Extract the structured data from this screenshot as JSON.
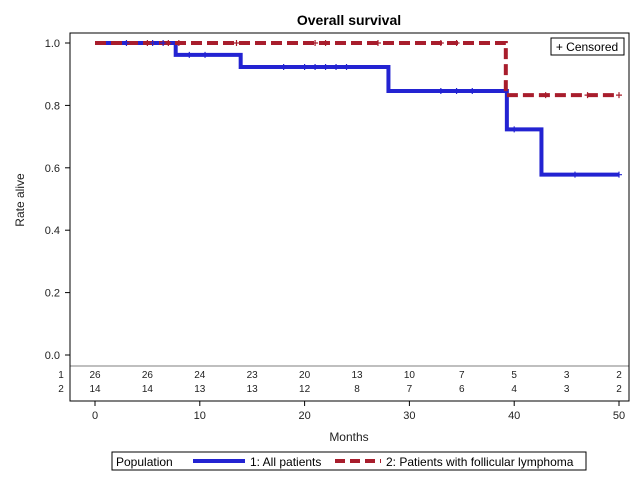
{
  "chart_data": {
    "type": "line",
    "step": true,
    "title": "Overall survival",
    "xlabel": "Months",
    "ylabel": "Rate alive",
    "xlim": [
      0,
      50
    ],
    "ylim": [
      0,
      1.0
    ],
    "x_ticks": [
      0,
      10,
      20,
      30,
      40,
      50
    ],
    "y_ticks": [
      0.0,
      0.2,
      0.4,
      0.6,
      0.8,
      1.0
    ],
    "y_tick_labels": [
      "0.0",
      "0.2",
      "0.4",
      "0.6",
      "0.8",
      "1.0"
    ],
    "censor_legend": "+ Censored",
    "series": [
      {
        "name": "1: All patients",
        "color": "#2323d2",
        "style": "solid",
        "steps": [
          [
            0,
            1.0
          ],
          [
            7.7,
            0.962
          ],
          [
            13.9,
            0.923
          ],
          [
            28,
            0.846
          ],
          [
            39.3,
            0.723
          ],
          [
            42.6,
            0.578
          ],
          [
            50,
            0.578
          ]
        ],
        "censored": [
          [
            3,
            1.0
          ],
          [
            5.5,
            1.0
          ],
          [
            6.5,
            1.0
          ],
          [
            9,
            0.962
          ],
          [
            10.5,
            0.962
          ],
          [
            18,
            0.923
          ],
          [
            20,
            0.923
          ],
          [
            21,
            0.923
          ],
          [
            22,
            0.923
          ],
          [
            23,
            0.923
          ],
          [
            24,
            0.923
          ],
          [
            33,
            0.846
          ],
          [
            34.5,
            0.846
          ],
          [
            36,
            0.846
          ],
          [
            40,
            0.723
          ],
          [
            45.8,
            0.578
          ],
          [
            50,
            0.578
          ]
        ]
      },
      {
        "name": "2: Patients with follicular lymphoma",
        "color": "#a81d2c",
        "style": "dashed",
        "steps": [
          [
            0,
            1.0
          ],
          [
            39.2,
            0.833
          ],
          [
            50,
            0.833
          ]
        ],
        "censored": [
          [
            5,
            1.0
          ],
          [
            7,
            1.0
          ],
          [
            8,
            1.0
          ],
          [
            13.5,
            1.0
          ],
          [
            21,
            1.0
          ],
          [
            22,
            1.0
          ],
          [
            27,
            1.0
          ],
          [
            33,
            1.0
          ],
          [
            34.5,
            1.0
          ],
          [
            43,
            0.833
          ],
          [
            47,
            0.833
          ],
          [
            50,
            0.833
          ]
        ]
      }
    ],
    "risk_table": {
      "x": [
        0,
        5,
        10,
        15,
        20,
        25,
        30,
        35,
        40,
        45,
        50
      ],
      "rows": [
        {
          "label": "1",
          "values": [
            "26",
            "26",
            "24",
            "23",
            "20",
            "13",
            "10",
            "7",
            "5",
            "3",
            "2"
          ]
        },
        {
          "label": "2",
          "values": [
            "14",
            "14",
            "13",
            "13",
            "12",
            "8",
            "7",
            "6",
            "4",
            "3",
            "2"
          ]
        }
      ]
    },
    "legend": {
      "title": "Population",
      "placement": "bottom",
      "entries": [
        "1: All patients",
        "2: Patients with follicular lymphoma"
      ]
    }
  }
}
